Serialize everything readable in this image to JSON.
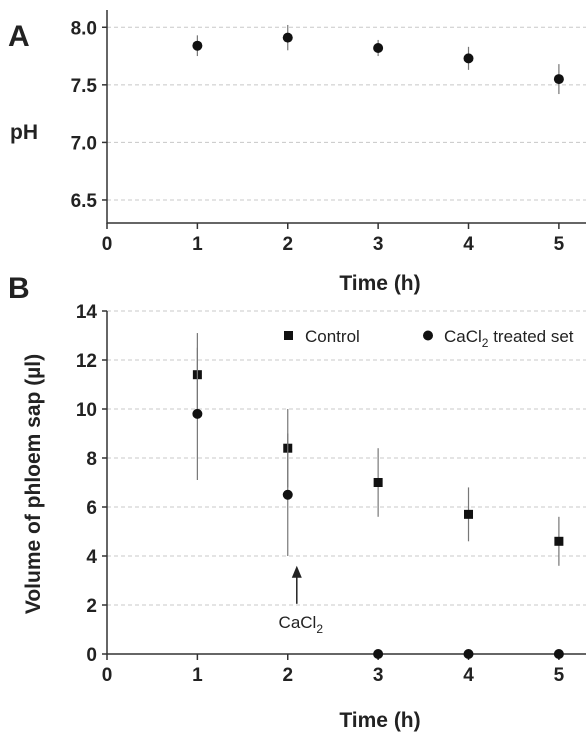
{
  "chart_data": [
    {
      "panel": "A",
      "type": "scatter",
      "xlabel": "Time (h)",
      "ylabel": "pH",
      "xlim": [
        0,
        5.3
      ],
      "ylim": [
        6.3,
        8.15
      ],
      "xticks": [
        0,
        1,
        2,
        3,
        4,
        5
      ],
      "yticks": [
        6.5,
        7.0,
        7.5,
        8.0
      ],
      "ytick_labels": [
        "6.5",
        "7.0",
        "7.5",
        "8.0"
      ],
      "grid": "horizontal-dashed",
      "series": [
        {
          "marker": "circle",
          "x": [
            1,
            2,
            3,
            4,
            5
          ],
          "y": [
            7.84,
            7.91,
            7.82,
            7.73,
            7.55
          ],
          "error": [
            0.09,
            0.11,
            0.07,
            0.1,
            0.13
          ]
        }
      ]
    },
    {
      "panel": "B",
      "type": "scatter",
      "xlabel": "Time (h)",
      "ylabel": "Volume of phloem sap (µl)",
      "xlim": [
        0,
        5.3
      ],
      "ylim": [
        0,
        14
      ],
      "xticks": [
        0,
        1,
        2,
        3,
        4,
        5
      ],
      "yticks": [
        0,
        2,
        4,
        6,
        8,
        10,
        12,
        14
      ],
      "grid": "horizontal-dashed",
      "legend": "top-right",
      "series": [
        {
          "name": "Control",
          "marker": "square",
          "x": [
            1,
            2,
            3,
            4,
            5
          ],
          "y": [
            11.4,
            8.4,
            7.0,
            5.7,
            4.6
          ],
          "error": [
            1.7,
            1.6,
            1.4,
            1.1,
            1.0
          ]
        },
        {
          "name": "CaCl2 treated set",
          "marker": "circle",
          "x": [
            1,
            2,
            3,
            4,
            5
          ],
          "y": [
            9.8,
            6.5,
            0,
            0,
            0
          ],
          "error": [
            2.7,
            2.5,
            0,
            0,
            0
          ]
        }
      ],
      "annotation": {
        "text": "CaCl2",
        "arrow_to": [
          2.1,
          3.6
        ]
      }
    }
  ]
}
